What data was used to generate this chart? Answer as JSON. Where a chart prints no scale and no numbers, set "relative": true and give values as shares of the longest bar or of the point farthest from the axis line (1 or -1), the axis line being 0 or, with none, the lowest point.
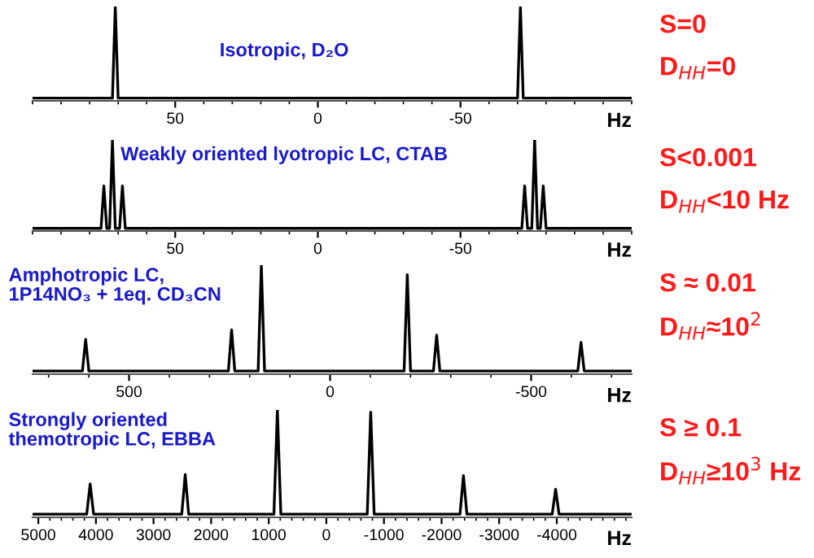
{
  "chart_data": [
    {
      "type": "line",
      "title": "Isotropic, D₂O",
      "xlabel": "Hz",
      "relative": true,
      "tick_labels": "x",
      "grid": false,
      "legend": false,
      "marker": "none",
      "line_style": "solid",
      "xlim": [
        100,
        -110
      ],
      "xticks": [
        50,
        0,
        -50
      ],
      "annotations": [
        "S=0",
        "D$_{HH}$=0"
      ],
      "series": [
        {
          "color": "#000000",
          "x": [
            100,
            72,
            71,
            70,
            -70,
            -71,
            -72,
            -110
          ],
          "values": [
            0,
            0,
            1,
            0,
            0,
            1,
            0,
            0
          ]
        }
      ]
    },
    {
      "type": "line",
      "title": "Weakly oriented lyotropic LC, CTAB",
      "xlabel": "Hz",
      "relative": true,
      "tick_labels": "x",
      "grid": false,
      "legend": false,
      "marker": "none",
      "line_style": "solid",
      "xlim": [
        100,
        -110
      ],
      "xticks": [
        50,
        0,
        -50
      ],
      "annotations": [
        "S<0.001",
        "D$_{HH}$<10 Hz"
      ],
      "series": [
        {
          "color": "#000000",
          "x": [
            100,
            76,
            75,
            74,
            73,
            72,
            71,
            69.5,
            68.5,
            67.5,
            -71.5,
            -72.5,
            -73.5,
            -75,
            -76,
            -77,
            -78,
            -79,
            -80,
            -110
          ],
          "values": [
            0,
            0,
            0.48,
            0,
            0,
            1,
            0,
            0,
            0.48,
            0,
            0,
            0.48,
            0,
            0,
            1,
            0,
            0,
            0.48,
            0,
            0
          ]
        }
      ]
    },
    {
      "type": "line",
      "title": "Amphotropic LC,\n1P14NO₃ + 1eq. CD₃CN",
      "xlabel": "Hz",
      "relative": true,
      "tick_labels": "x",
      "grid": false,
      "legend": false,
      "marker": "none",
      "line_style": "solid",
      "xlim": [
        740,
        -750
      ],
      "xticks": [
        500,
        0,
        -500
      ],
      "annotations": [
        "S ≈ 0.01",
        "D$_{HH}$≈10$^{2}$"
      ],
      "series": [
        {
          "color": "#000000",
          "x": [
            740,
            616,
            608,
            600,
            253,
            245,
            237,
            179,
            171,
            163,
            -184,
            -192,
            -200,
            -257,
            -265,
            -273,
            -616,
            -624,
            -632,
            -750
          ],
          "values": [
            0,
            0,
            0.3,
            0,
            0,
            0.39,
            0,
            0,
            1,
            0,
            0,
            0.91,
            0,
            0,
            0.34,
            0,
            0,
            0.27,
            0,
            0
          ]
        }
      ]
    },
    {
      "type": "line",
      "title": "Strongly oriented\nthemotropic LC, EBBA",
      "xlabel": "Hz",
      "relative": true,
      "tick_labels": "x",
      "grid": false,
      "legend": false,
      "marker": "none",
      "line_style": "solid",
      "xlim": [
        5100,
        -5300
      ],
      "xticks": [
        5000,
        4000,
        3000,
        2000,
        1000,
        0,
        -1000,
        -2000,
        -3000,
        -4000
      ],
      "annotations": [
        "S ≥ 0.1",
        "D$_{HH}$≥10$^{3}$ Hz"
      ],
      "series": [
        {
          "color": "#000000",
          "x": [
            5100,
            4160,
            4100,
            4040,
            2510,
            2450,
            2390,
            910,
            850,
            790,
            -710,
            -770,
            -830,
            -2320,
            -2380,
            -2440,
            -3920,
            -3980,
            -4040,
            -5300
          ],
          "values": [
            0,
            0,
            0.29,
            0,
            0,
            0.38,
            0,
            0,
            1,
            0,
            0,
            0.98,
            0,
            0,
            0.37,
            0,
            0,
            0.24,
            0,
            0
          ]
        }
      ]
    }
  ]
}
